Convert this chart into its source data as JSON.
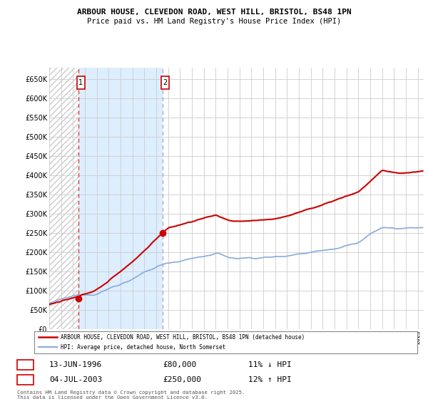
{
  "title": "ARBOUR HOUSE, CLEVEDON ROAD, WEST HILL, BRISTOL, BS48 1PN",
  "subtitle": "Price paid vs. HM Land Registry's House Price Index (HPI)",
  "legend_line1": "ARBOUR HOUSE, CLEVEDON ROAD, WEST HILL, BRISTOL, BS48 1PN (detached house)",
  "legend_line2": "HPI: Average price, detached house, North Somerset",
  "purchase1_date": "13-JUN-1996",
  "purchase1_price": 80000,
  "purchase1_hpi": "11% ↓ HPI",
  "purchase2_date": "04-JUL-2003",
  "purchase2_price": 250000,
  "purchase2_hpi": "12% ↑ HPI",
  "footer": "Contains HM Land Registry data © Crown copyright and database right 2025.\nThis data is licensed under the Open Government Licence v3.0.",
  "ylim": [
    0,
    680000
  ],
  "yticks": [
    0,
    50000,
    100000,
    150000,
    200000,
    250000,
    300000,
    350000,
    400000,
    450000,
    500000,
    550000,
    600000,
    650000
  ],
  "price_line_color": "#cc0000",
  "hpi_line_color": "#88aadd",
  "vline_color": "#dd4444",
  "bg_color": "#ffffff",
  "grid_color": "#cccccc",
  "box_color": "#cc0000",
  "shade_color": "#ddeeff",
  "hatch_color": "#cccccc"
}
